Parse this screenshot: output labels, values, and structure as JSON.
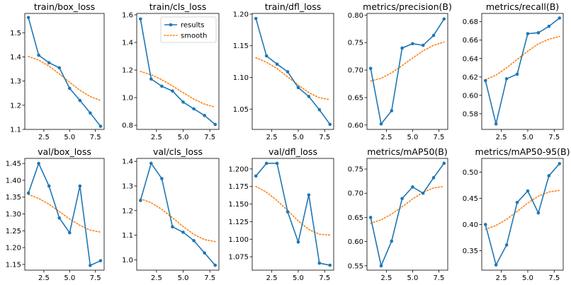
{
  "chart_data": [
    {
      "type": "line",
      "title": "train/box_loss",
      "x": [
        1,
        2,
        3,
        4,
        5,
        6,
        7,
        8
      ],
      "series": [
        {
          "name": "results",
          "values": [
            1.563,
            1.407,
            1.376,
            1.355,
            1.27,
            1.22,
            1.168,
            1.113
          ]
        },
        {
          "name": "smooth",
          "values": [
            1.402,
            1.387,
            1.362,
            1.33,
            1.295,
            1.262,
            1.236,
            1.22
          ]
        }
      ],
      "colors": {
        "results": "#1f77b4",
        "smooth": "#ff7f0e"
      },
      "xlim": [
        0.65,
        8.35
      ],
      "ylim": [
        1.1,
        1.58
      ],
      "xticks": [
        2.5,
        5.0,
        7.5
      ],
      "xtick_labels": [
        "2.5",
        "5.0",
        "7.5"
      ],
      "yticks": [
        1.1,
        1.2,
        1.3,
        1.4,
        1.5
      ],
      "ytick_labels": [
        "1.1",
        "1.2",
        "1.3",
        "1.4",
        "1.5"
      ]
    },
    {
      "type": "line",
      "title": "train/cls_loss",
      "x": [
        1,
        2,
        3,
        4,
        5,
        6,
        7,
        8
      ],
      "series": [
        {
          "name": "results",
          "values": [
            1.57,
            1.135,
            1.083,
            1.048,
            0.968,
            0.919,
            0.871,
            0.806
          ]
        },
        {
          "name": "smooth",
          "values": [
            1.19,
            1.166,
            1.13,
            1.085,
            1.036,
            0.99,
            0.953,
            0.932
          ]
        }
      ],
      "colors": {
        "results": "#1f77b4",
        "smooth": "#ff7f0e"
      },
      "legend": {
        "position": "top-right",
        "entries": [
          "results",
          "smooth"
        ]
      },
      "xlim": [
        0.65,
        8.35
      ],
      "ylim": [
        0.77,
        1.61
      ],
      "xticks": [
        2.5,
        5.0,
        7.5
      ],
      "xtick_labels": [
        "2.5",
        "5.0",
        "7.5"
      ],
      "yticks": [
        0.8,
        1.0,
        1.2,
        1.4,
        1.6
      ],
      "ytick_labels": [
        "0.8",
        "1.0",
        "1.2",
        "1.4",
        "1.6"
      ]
    },
    {
      "type": "line",
      "title": "train/dfl_loss",
      "x": [
        1,
        2,
        3,
        4,
        5,
        6,
        7,
        8
      ],
      "series": [
        {
          "name": "results",
          "values": [
            1.193,
            1.134,
            1.121,
            1.109,
            1.084,
            1.07,
            1.049,
            1.026
          ]
        },
        {
          "name": "smooth",
          "values": [
            1.131,
            1.124,
            1.114,
            1.101,
            1.088,
            1.076,
            1.068,
            1.065
          ]
        }
      ],
      "colors": {
        "results": "#1f77b4",
        "smooth": "#ff7f0e"
      },
      "xlim": [
        0.65,
        8.35
      ],
      "ylim": [
        1.018,
        1.201
      ],
      "xticks": [
        2.5,
        5.0,
        7.5
      ],
      "xtick_labels": [
        "2.5",
        "5.0",
        "7.5"
      ],
      "yticks": [
        1.05,
        1.1,
        1.15,
        1.2
      ],
      "ytick_labels": [
        "1.05",
        "1.10",
        "1.15",
        "1.20"
      ]
    },
    {
      "type": "line",
      "title": "metrics/precision(B)",
      "x": [
        1,
        2,
        3,
        4,
        5,
        6,
        7,
        8
      ],
      "series": [
        {
          "name": "results",
          "values": [
            0.703,
            0.602,
            0.626,
            0.74,
            0.748,
            0.745,
            0.763,
            0.793
          ]
        },
        {
          "name": "smooth",
          "values": [
            0.68,
            0.685,
            0.695,
            0.708,
            0.722,
            0.735,
            0.745,
            0.751
          ]
        }
      ],
      "colors": {
        "results": "#1f77b4",
        "smooth": "#ff7f0e"
      },
      "xlim": [
        0.65,
        8.35
      ],
      "ylim": [
        0.592,
        0.803
      ],
      "xticks": [
        2.5,
        5.0,
        7.5
      ],
      "xtick_labels": [
        "2.5",
        "5.0",
        "7.5"
      ],
      "yticks": [
        0.6,
        0.65,
        0.7,
        0.75,
        0.8
      ],
      "ytick_labels": [
        "0.60",
        "0.65",
        "0.70",
        "0.75",
        "0.80"
      ]
    },
    {
      "type": "line",
      "title": "metrics/recall(B)",
      "x": [
        1,
        2,
        3,
        4,
        5,
        6,
        7,
        8
      ],
      "series": [
        {
          "name": "results",
          "values": [
            0.616,
            0.569,
            0.618,
            0.623,
            0.667,
            0.668,
            0.675,
            0.684
          ]
        },
        {
          "name": "smooth",
          "values": [
            0.617,
            0.622,
            0.63,
            0.639,
            0.648,
            0.656,
            0.661,
            0.664
          ]
        }
      ],
      "colors": {
        "results": "#1f77b4",
        "smooth": "#ff7f0e"
      },
      "xlim": [
        0.65,
        8.35
      ],
      "ylim": [
        0.563,
        0.689
      ],
      "xticks": [
        2.5,
        5.0,
        7.5
      ],
      "xtick_labels": [
        "2.5",
        "5.0",
        "7.5"
      ],
      "yticks": [
        0.58,
        0.6,
        0.62,
        0.64,
        0.66,
        0.68
      ],
      "ytick_labels": [
        "0.58",
        "0.60",
        "0.62",
        "0.64",
        "0.66",
        "0.68"
      ]
    },
    {
      "type": "line",
      "title": "val/box_loss",
      "x": [
        1,
        2,
        3,
        4,
        5,
        6,
        7,
        8
      ],
      "series": [
        {
          "name": "results",
          "values": [
            1.362,
            1.45,
            1.383,
            1.288,
            1.244,
            1.383,
            1.147,
            1.161
          ]
        },
        {
          "name": "smooth",
          "values": [
            1.358,
            1.346,
            1.329,
            1.307,
            1.285,
            1.266,
            1.252,
            1.246
          ]
        }
      ],
      "colors": {
        "results": "#1f77b4",
        "smooth": "#ff7f0e"
      },
      "xlim": [
        0.65,
        8.35
      ],
      "ylim": [
        1.133,
        1.465
      ],
      "xticks": [
        2.5,
        5.0,
        7.5
      ],
      "xtick_labels": [
        "2.5",
        "5.0",
        "7.5"
      ],
      "yticks": [
        1.15,
        1.2,
        1.25,
        1.3,
        1.35,
        1.4,
        1.45
      ],
      "ytick_labels": [
        "1.15",
        "1.20",
        "1.25",
        "1.30",
        "1.35",
        "1.40",
        "1.45"
      ]
    },
    {
      "type": "line",
      "title": "val/cls_loss",
      "x": [
        1,
        2,
        3,
        4,
        5,
        6,
        7,
        8
      ],
      "series": [
        {
          "name": "results",
          "values": [
            1.241,
            1.392,
            1.33,
            1.134,
            1.112,
            1.078,
            1.028,
            0.978
          ]
        },
        {
          "name": "smooth",
          "values": [
            1.248,
            1.232,
            1.205,
            1.171,
            1.135,
            1.103,
            1.082,
            1.074
          ]
        }
      ],
      "colors": {
        "results": "#1f77b4",
        "smooth": "#ff7f0e"
      },
      "xlim": [
        0.65,
        8.35
      ],
      "ylim": [
        0.958,
        1.412
      ],
      "xticks": [
        2.5,
        5.0,
        7.5
      ],
      "xtick_labels": [
        "2.5",
        "5.0",
        "7.5"
      ],
      "yticks": [
        1.0,
        1.1,
        1.2,
        1.3,
        1.4
      ],
      "ytick_labels": [
        "1.0",
        "1.1",
        "1.2",
        "1.3",
        "1.4"
      ]
    },
    {
      "type": "line",
      "title": "val/dfl_loss",
      "x": [
        1,
        2,
        3,
        4,
        5,
        6,
        7,
        8
      ],
      "series": [
        {
          "name": "results",
          "values": [
            1.19,
            1.208,
            1.208,
            1.139,
            1.096,
            1.163,
            1.066,
            1.063
          ]
        },
        {
          "name": "smooth",
          "values": [
            1.175,
            1.167,
            1.155,
            1.141,
            1.126,
            1.114,
            1.107,
            1.106
          ]
        }
      ],
      "colors": {
        "results": "#1f77b4",
        "smooth": "#ff7f0e"
      },
      "xlim": [
        0.65,
        8.35
      ],
      "ylim": [
        1.056,
        1.215
      ],
      "xticks": [
        2.5,
        5.0,
        7.5
      ],
      "xtick_labels": [
        "2.5",
        "5.0",
        "7.5"
      ],
      "yticks": [
        1.075,
        1.1,
        1.125,
        1.15,
        1.175,
        1.2
      ],
      "ytick_labels": [
        "1.075",
        "1.100",
        "1.125",
        "1.150",
        "1.175",
        "1.200"
      ]
    },
    {
      "type": "line",
      "title": "metrics/mAP50(B)",
      "x": [
        1,
        2,
        3,
        4,
        5,
        6,
        7,
        8
      ],
      "series": [
        {
          "name": "results",
          "values": [
            0.65,
            0.55,
            0.601,
            0.689,
            0.713,
            0.7,
            0.732,
            0.762
          ]
        },
        {
          "name": "smooth",
          "values": [
            0.638,
            0.645,
            0.657,
            0.672,
            0.688,
            0.702,
            0.711,
            0.714
          ]
        }
      ],
      "colors": {
        "results": "#1f77b4",
        "smooth": "#ff7f0e"
      },
      "xlim": [
        0.65,
        8.35
      ],
      "ylim": [
        0.541,
        0.772
      ],
      "xticks": [
        2.5,
        5.0,
        7.5
      ],
      "xtick_labels": [
        "2.5",
        "5.0",
        "7.5"
      ],
      "yticks": [
        0.55,
        0.6,
        0.65,
        0.7,
        0.75
      ],
      "ytick_labels": [
        "0.55",
        "0.60",
        "0.65",
        "0.70",
        "0.75"
      ]
    },
    {
      "type": "line",
      "title": "metrics/mAP50-95(B)",
      "x": [
        1,
        2,
        3,
        4,
        5,
        6,
        7,
        8
      ],
      "series": [
        {
          "name": "results",
          "values": [
            0.4,
            0.323,
            0.361,
            0.442,
            0.464,
            0.422,
            0.493,
            0.516
          ]
        },
        {
          "name": "smooth",
          "values": [
            0.391,
            0.398,
            0.41,
            0.425,
            0.441,
            0.454,
            0.462,
            0.465
          ]
        }
      ],
      "colors": {
        "results": "#1f77b4",
        "smooth": "#ff7f0e"
      },
      "xlim": [
        0.65,
        8.35
      ],
      "ylim": [
        0.313,
        0.526
      ],
      "xticks": [
        2.5,
        5.0,
        7.5
      ],
      "xtick_labels": [
        "2.5",
        "5.0",
        "7.5"
      ],
      "yticks": [
        0.35,
        0.4,
        0.45,
        0.5
      ],
      "ytick_labels": [
        "0.35",
        "0.40",
        "0.45",
        "0.50"
      ]
    }
  ]
}
